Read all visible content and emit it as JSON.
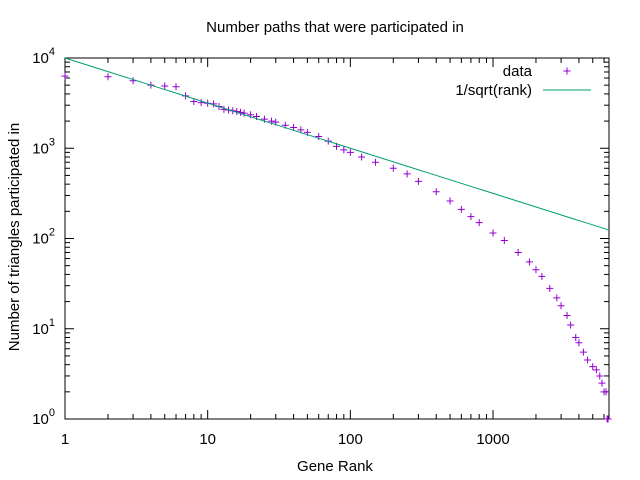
{
  "chart_data": {
    "type": "scatter",
    "title": "Number paths that were participated in",
    "xlabel": "Gene Rank",
    "ylabel": "Number of triangles participated in",
    "xscale": "log",
    "yscale": "log",
    "xlim": [
      1,
      6500
    ],
    "ylim": [
      1,
      10000
    ],
    "grid": false,
    "legend_position": "top-right",
    "x_ticks": [
      {
        "value": 1,
        "label": "1"
      },
      {
        "value": 10,
        "label": "10"
      },
      {
        "value": 100,
        "label": "100"
      },
      {
        "value": 1000,
        "label": "1000"
      }
    ],
    "y_ticks": [
      {
        "value": 1,
        "base": "10",
        "exp": "0"
      },
      {
        "value": 10,
        "base": "10",
        "exp": "1"
      },
      {
        "value": 100,
        "base": "10",
        "exp": "2"
      },
      {
        "value": 1000,
        "base": "10",
        "exp": "3"
      },
      {
        "value": 10000,
        "base": "10",
        "exp": "4"
      }
    ],
    "series": [
      {
        "name": "data",
        "kind": "points",
        "marker": "+",
        "color": "#9400D3",
        "points": [
          [
            1,
            6300
          ],
          [
            2,
            6200
          ],
          [
            3,
            5600
          ],
          [
            4,
            5000
          ],
          [
            5,
            4900
          ],
          [
            6,
            4800
          ],
          [
            7,
            3800
          ],
          [
            8,
            3300
          ],
          [
            9,
            3200
          ],
          [
            10,
            3150
          ],
          [
            11,
            3100
          ],
          [
            12,
            2900
          ],
          [
            13,
            2700
          ],
          [
            14,
            2650
          ],
          [
            15,
            2600
          ],
          [
            16,
            2550
          ],
          [
            17,
            2500
          ],
          [
            18,
            2450
          ],
          [
            20,
            2350
          ],
          [
            22,
            2250
          ],
          [
            25,
            2100
          ],
          [
            28,
            2000
          ],
          [
            30,
            1950
          ],
          [
            35,
            1800
          ],
          [
            40,
            1700
          ],
          [
            45,
            1600
          ],
          [
            50,
            1500
          ],
          [
            60,
            1350
          ],
          [
            70,
            1200
          ],
          [
            80,
            1050
          ],
          [
            90,
            960
          ],
          [
            100,
            900
          ],
          [
            120,
            800
          ],
          [
            150,
            700
          ],
          [
            200,
            600
          ],
          [
            250,
            520
          ],
          [
            300,
            430
          ],
          [
            400,
            330
          ],
          [
            500,
            260
          ],
          [
            600,
            210
          ],
          [
            700,
            175
          ],
          [
            800,
            150
          ],
          [
            1000,
            115
          ],
          [
            1200,
            95
          ],
          [
            1500,
            70
          ],
          [
            1800,
            55
          ],
          [
            2000,
            45
          ],
          [
            2200,
            38
          ],
          [
            2500,
            28
          ],
          [
            2800,
            22
          ],
          [
            3000,
            18
          ],
          [
            3300,
            14
          ],
          [
            3500,
            11
          ],
          [
            3800,
            8
          ],
          [
            4000,
            7
          ],
          [
            4300,
            5.5
          ],
          [
            4600,
            4.5
          ],
          [
            5000,
            3.8
          ],
          [
            5300,
            3.5
          ],
          [
            5600,
            3
          ],
          [
            5800,
            2.5
          ],
          [
            6000,
            2
          ],
          [
            6200,
            2
          ],
          [
            6300,
            1
          ],
          [
            6400,
            1
          ]
        ]
      },
      {
        "name": "1/sqrt(rank)",
        "kind": "line",
        "color": "#009E73",
        "x_range": [
          1,
          6500
        ],
        "coefficient": 10000,
        "exponent": -0.5
      }
    ]
  }
}
